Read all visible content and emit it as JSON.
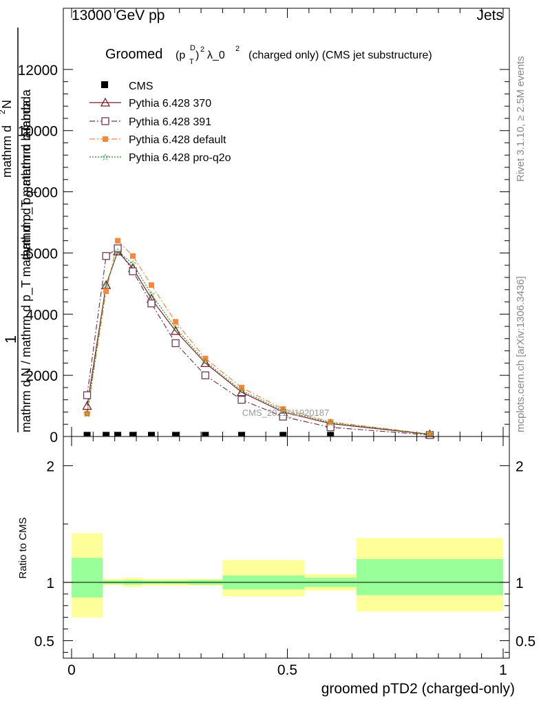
{
  "header": {
    "left": "13000 GeV pp",
    "right": "Jets"
  },
  "side_text": {
    "rivet": "Rivet 3.1.10, ≥ 2.5M events",
    "mcplots": "mcplots.cern.ch [arXiv:1306.3436]"
  },
  "watermark": "CMS_2021_I1920187",
  "colors": {
    "cms": "#000000",
    "p370": "#7a1f2b",
    "p391": "#6b3a54",
    "pdefault": "#f5883a",
    "pq2o": "#1e8a1e",
    "band_inner": "#99ff99",
    "band_outer": "#ffff99"
  },
  "chart_data": [
    {
      "type": "line",
      "title": "Groomed (p_T^D)^2 λ_0^2 (charged only) (CMS jet substructure)",
      "title_parts": {
        "pre": "Groomed",
        "p": "(p",
        "sub": "T",
        "sup_d": "D",
        "close": ")",
        "sup2": "2",
        "lam": "λ_0",
        "sup_l": "2",
        "post": "(charged only) (CMS jet substructure)"
      },
      "ylabel_parts": {
        "one": "1",
        "den": "mathrm d N / mathrm d p_T mathrm d p_T mathrm d lambda",
        "num_a": "mathrm d",
        "num_sup": "2",
        "num_b": "N",
        "num_c": "mathrm d p",
        "num_sub": "T",
        "num_d": "mathrm d lambda"
      },
      "xlim": [
        0,
        1
      ],
      "ylim": [
        0,
        14000
      ],
      "ytick_values": [
        0,
        2000,
        4000,
        6000,
        8000,
        10000,
        12000
      ],
      "ytick_labels": [
        "0",
        "2000",
        "4000",
        "6000",
        "8000",
        "10000",
        "12000"
      ],
      "series": [
        {
          "name": "CMS",
          "x": [
            0.036,
            0.08,
            0.107,
            0.142,
            0.185,
            0.241,
            0.31,
            0.394,
            0.49,
            0.6
          ],
          "values": [
            15,
            15,
            15,
            15,
            15,
            15,
            15,
            15,
            15,
            15
          ]
        },
        {
          "name": "Pythia 6.428 370",
          "x": [
            0.036,
            0.08,
            0.107,
            0.142,
            0.185,
            0.241,
            0.31,
            0.394,
            0.49,
            0.6,
            0.83
          ],
          "values": [
            1000,
            4950,
            6050,
            5500,
            4500,
            3450,
            2400,
            1450,
            800,
            420,
            70
          ]
        },
        {
          "name": "Pythia 6.428 391",
          "x": [
            0.036,
            0.08,
            0.107,
            0.142,
            0.185,
            0.241,
            0.31,
            0.394,
            0.49,
            0.6,
            0.83
          ],
          "values": [
            1350,
            5900,
            6150,
            5400,
            4350,
            3050,
            2000,
            1200,
            650,
            300,
            50
          ]
        },
        {
          "name": "Pythia 6.428 default",
          "x": [
            0.036,
            0.08,
            0.107,
            0.142,
            0.185,
            0.241,
            0.31,
            0.394,
            0.49,
            0.6,
            0.83
          ],
          "values": [
            750,
            4750,
            6400,
            5900,
            4950,
            3750,
            2550,
            1600,
            900,
            480,
            80
          ]
        },
        {
          "name": "Pythia 6.428 pro-q2o",
          "x": [
            0.036,
            0.08,
            0.107,
            0.142,
            0.185,
            0.241,
            0.31,
            0.394,
            0.49,
            0.6,
            0.83
          ],
          "values": [
            750,
            4950,
            6050,
            5650,
            4650,
            3550,
            2450,
            1500,
            850,
            450,
            75
          ]
        }
      ]
    },
    {
      "type": "area",
      "ylabel": "Ratio to CMS",
      "xlabel": "groomed pTD2 (charged-only)",
      "xlim": [
        0,
        1
      ],
      "ylim": [
        0.35,
        2.25
      ],
      "xtick_values": [
        0,
        0.5,
        1
      ],
      "xtick_labels": [
        "0",
        "0.5",
        "1"
      ],
      "ytick_values": [
        0.5,
        1,
        2
      ],
      "ytick_labels": [
        "0.5",
        "1",
        "2"
      ],
      "bins": [
        {
          "x0": 0.0,
          "x1": 0.072,
          "inner": [
            0.87,
            1.21
          ],
          "outer": [
            0.7,
            1.42
          ]
        },
        {
          "x0": 0.072,
          "x1": 0.12,
          "inner": [
            0.985,
            1.015
          ],
          "outer": [
            0.975,
            1.03
          ]
        },
        {
          "x0": 0.12,
          "x1": 0.163,
          "inner": [
            0.98,
            1.02
          ],
          "outer": [
            0.96,
            1.04
          ]
        },
        {
          "x0": 0.163,
          "x1": 0.21,
          "inner": [
            0.985,
            1.015
          ],
          "outer": [
            0.97,
            1.03
          ]
        },
        {
          "x0": 0.21,
          "x1": 0.272,
          "inner": [
            0.985,
            1.015
          ],
          "outer": [
            0.97,
            1.03
          ]
        },
        {
          "x0": 0.272,
          "x1": 0.35,
          "inner": [
            0.98,
            1.02
          ],
          "outer": [
            0.97,
            1.03
          ]
        },
        {
          "x0": 0.35,
          "x1": 0.54,
          "inner": [
            0.94,
            1.06
          ],
          "outer": [
            0.88,
            1.19
          ]
        },
        {
          "x0": 0.54,
          "x1": 0.66,
          "inner": [
            0.96,
            1.04
          ],
          "outer": [
            0.93,
            1.07
          ]
        },
        {
          "x0": 0.66,
          "x1": 1.0,
          "inner": [
            0.89,
            1.2
          ],
          "outer": [
            0.75,
            1.38
          ]
        }
      ]
    }
  ]
}
